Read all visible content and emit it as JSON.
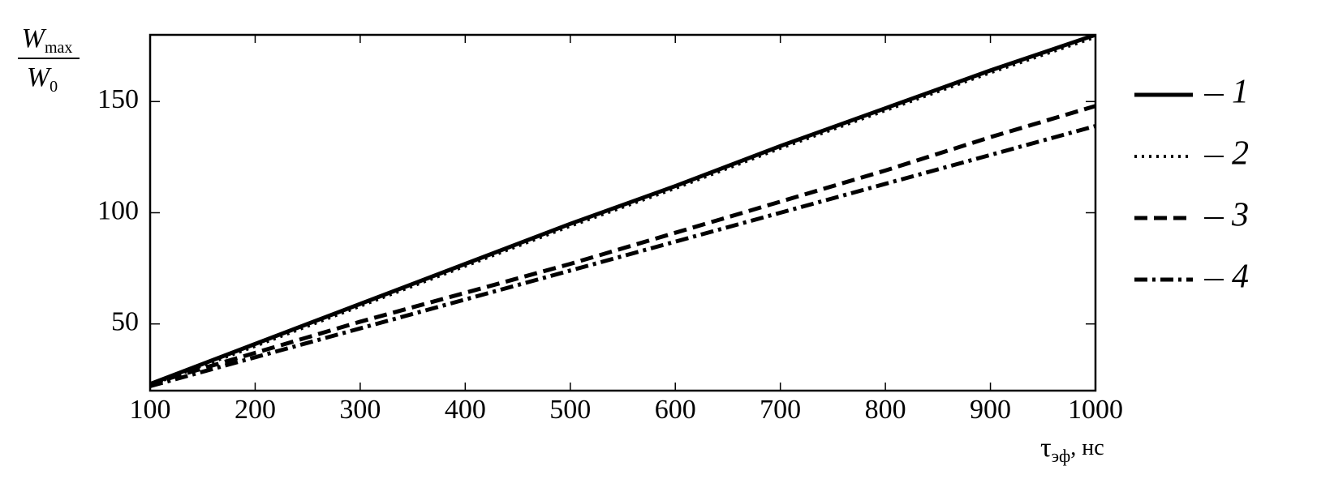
{
  "chart_data": {
    "type": "line",
    "ylabel": {
      "numerator": [
        "W",
        "max"
      ],
      "denominator": [
        "W",
        "0"
      ]
    },
    "xlabel": [
      "τ",
      "эф",
      ", нс"
    ],
    "x": [
      100,
      200,
      300,
      400,
      500,
      600,
      700,
      800,
      900,
      1000
    ],
    "series": [
      {
        "name": "1",
        "color": "#000000",
        "style": "solid",
        "values": [
          23,
          41,
          59,
          77,
          95,
          112,
          130,
          147,
          164,
          180
        ]
      },
      {
        "name": "2",
        "color": "#000000",
        "style": "dotted",
        "values": [
          22.5,
          40,
          58,
          76,
          94,
          111,
          129,
          146,
          163,
          179
        ]
      },
      {
        "name": "3",
        "color": "#000000",
        "style": "dashed",
        "values": [
          23,
          37,
          51,
          64,
          77,
          91,
          105,
          119,
          134,
          148
        ]
      },
      {
        "name": "4",
        "color": "#000000",
        "style": "dashdot",
        "values": [
          22,
          35,
          48,
          61,
          74,
          87,
          100,
          113,
          126,
          139
        ]
      }
    ],
    "xlim": [
      100,
      1000
    ],
    "xticks": [
      100,
      200,
      300,
      400,
      500,
      600,
      700,
      800,
      900,
      1000
    ],
    "ylim": [
      20,
      180
    ],
    "yticks": [
      50,
      100,
      150
    ],
    "grid": false,
    "legend": "right"
  }
}
